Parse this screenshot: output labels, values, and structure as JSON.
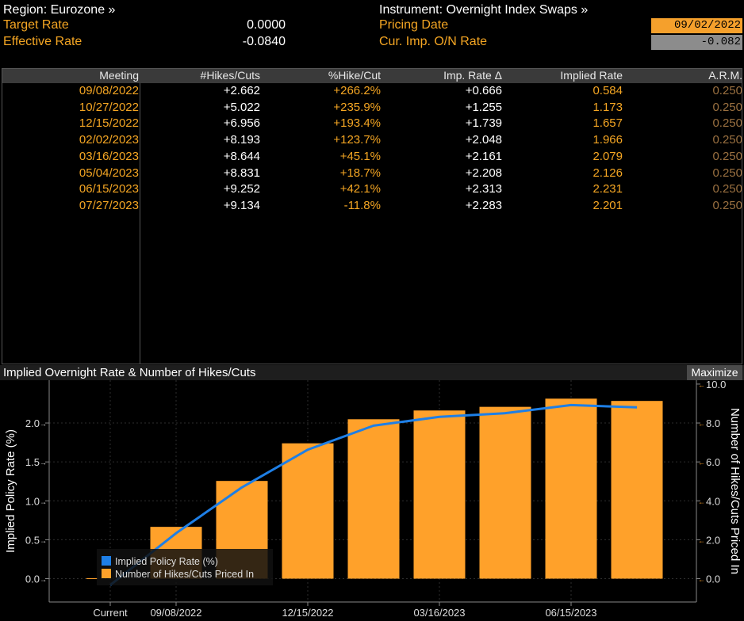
{
  "header": {
    "region": "Region: Eurozone »",
    "instrument": "Instrument: Overnight Index Swaps »",
    "target_rate_label": "Target Rate",
    "target_rate_value": "0.0000",
    "effective_rate_label": "Effective Rate",
    "effective_rate_value": "-0.0840",
    "pricing_date_label": "Pricing Date",
    "pricing_date_value": "09/02/2022",
    "cur_imp_label": "Cur. Imp. O/N Rate",
    "cur_imp_value": "-0.082"
  },
  "table": {
    "columns": [
      "Meeting",
      "#Hikes/Cuts",
      "%Hike/Cut",
      "Imp. Rate Δ",
      "Implied Rate",
      "A.R.M."
    ],
    "rows": [
      {
        "meeting": "09/08/2022",
        "hikes": "+2.662",
        "pct": "+266.2%",
        "delta": "+0.666",
        "implied": "0.584",
        "arm": "0.250"
      },
      {
        "meeting": "10/27/2022",
        "hikes": "+5.022",
        "pct": "+235.9%",
        "delta": "+1.255",
        "implied": "1.173",
        "arm": "0.250"
      },
      {
        "meeting": "12/15/2022",
        "hikes": "+6.956",
        "pct": "+193.4%",
        "delta": "+1.739",
        "implied": "1.657",
        "arm": "0.250"
      },
      {
        "meeting": "02/02/2023",
        "hikes": "+8.193",
        "pct": "+123.7%",
        "delta": "+2.048",
        "implied": "1.966",
        "arm": "0.250"
      },
      {
        "meeting": "03/16/2023",
        "hikes": "+8.644",
        "pct": "+45.1%",
        "delta": "+2.161",
        "implied": "2.079",
        "arm": "0.250"
      },
      {
        "meeting": "05/04/2023",
        "hikes": "+8.831",
        "pct": "+18.7%",
        "delta": "+2.208",
        "implied": "2.126",
        "arm": "0.250"
      },
      {
        "meeting": "06/15/2023",
        "hikes": "+9.252",
        "pct": "+42.1%",
        "delta": "+2.313",
        "implied": "2.231",
        "arm": "0.250"
      },
      {
        "meeting": "07/27/2023",
        "hikes": "+9.134",
        "pct": "-11.8%",
        "delta": "+2.283",
        "implied": "2.201",
        "arm": "0.250"
      }
    ]
  },
  "chart_panel": {
    "title": "Implied Overnight Rate & Number of Hikes/Cuts",
    "maximize_label": "Maximize"
  },
  "colors": {
    "accent_orange": "#f5a623",
    "bar_orange": "#ffa12a",
    "line_blue": "#1e7fe6"
  },
  "chart_data": {
    "type": "bar",
    "categories": [
      "Current",
      "09/08/2022",
      "10/27/2022",
      "12/15/2022",
      "02/02/2023",
      "03/16/2023",
      "05/04/2023",
      "06/15/2023",
      "07/27/2023"
    ],
    "x_tick_labels": [
      "Current",
      "09/08/2022",
      "12/15/2022",
      "03/16/2023",
      "06/15/2023"
    ],
    "ylabel_left": "Implied Policy Rate (%)",
    "ylabel_right": "Number of Hikes/Cuts Priced In",
    "ylim_left": [
      -0.3,
      2.55
    ],
    "ylim_right": [
      -1.2,
      10.2
    ],
    "yticks_left": [
      "0.0",
      "0.5",
      "1.0",
      "1.5",
      "2.0"
    ],
    "yticks_right": [
      "0.0",
      "2.0",
      "4.0",
      "6.0",
      "8.0",
      "10.0"
    ],
    "series": [
      {
        "name": "Implied Policy Rate (%)",
        "type": "line",
        "axis": "left",
        "values": [
          -0.082,
          0.584,
          1.173,
          1.657,
          1.966,
          2.079,
          2.126,
          2.231,
          2.201
        ]
      },
      {
        "name": "Number of Hikes/Cuts Priced In",
        "type": "bar",
        "axis": "right",
        "values": [
          0,
          2.662,
          5.022,
          6.956,
          8.193,
          8.644,
          8.831,
          9.252,
          9.134
        ]
      }
    ],
    "legend_placement": "bottom-left"
  }
}
